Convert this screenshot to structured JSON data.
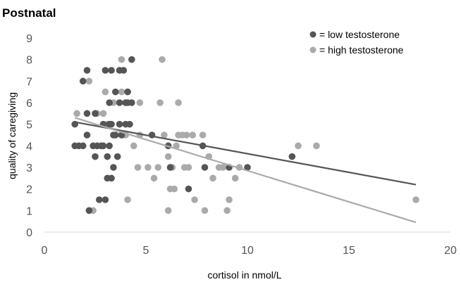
{
  "chart_data": {
    "type": "scatter",
    "title": "Postnatal",
    "xlabel": "cortisol in nmol/L",
    "ylabel": "quality of caregiving",
    "xlim": [
      0,
      20
    ],
    "ylim": [
      0,
      9
    ],
    "xticks": [
      "0",
      "5",
      "10",
      "15",
      "20"
    ],
    "yticks": [
      "0",
      "1",
      "2",
      "3",
      "4",
      "5",
      "6",
      "7",
      "8",
      "9"
    ],
    "grid": false,
    "legend_position": "top-right",
    "series": [
      {
        "name": "= low testosterone",
        "color": "#555555",
        "trendline": {
          "x1": 1.5,
          "y1": 5.1,
          "x2": 18.3,
          "y2": 2.2
        },
        "points": [
          [
            1.5,
            5
          ],
          [
            1.5,
            4
          ],
          [
            1.7,
            4
          ],
          [
            1.9,
            4
          ],
          [
            1.9,
            7
          ],
          [
            2.1,
            7.5
          ],
          [
            2.1,
            5.5
          ],
          [
            2.1,
            4.5
          ],
          [
            2.2,
            1
          ],
          [
            2.4,
            4
          ],
          [
            2.5,
            3.5
          ],
          [
            2.5,
            5.5
          ],
          [
            2.6,
            4
          ],
          [
            2.7,
            1.5
          ],
          [
            2.8,
            4
          ],
          [
            2.9,
            4
          ],
          [
            2.9,
            5
          ],
          [
            3.0,
            7.5
          ],
          [
            3.0,
            1.5
          ],
          [
            3.1,
            2.5
          ],
          [
            3.1,
            3.5
          ],
          [
            3.2,
            4
          ],
          [
            3.2,
            5
          ],
          [
            3.2,
            6
          ],
          [
            3.3,
            7.5
          ],
          [
            3.3,
            2.5
          ],
          [
            3.3,
            5
          ],
          [
            3.4,
            3
          ],
          [
            3.4,
            4.5
          ],
          [
            3.5,
            6.5
          ],
          [
            3.5,
            4.5
          ],
          [
            3.6,
            3.5
          ],
          [
            3.7,
            5
          ],
          [
            3.7,
            6
          ],
          [
            3.7,
            7.5
          ],
          [
            3.8,
            4.5
          ],
          [
            3.9,
            7.5
          ],
          [
            4.0,
            6
          ],
          [
            4.0,
            5
          ],
          [
            4.1,
            6.5
          ],
          [
            4.1,
            6
          ],
          [
            4.2,
            5
          ],
          [
            4.3,
            8
          ],
          [
            4.3,
            6
          ],
          [
            5.3,
            4.5
          ],
          [
            6.1,
            4
          ],
          [
            6.2,
            3
          ],
          [
            7.1,
            2
          ],
          [
            7.8,
            4
          ],
          [
            7.9,
            3
          ],
          [
            9.1,
            3
          ],
          [
            10.0,
            3
          ],
          [
            12.2,
            3.5
          ]
        ]
      },
      {
        "name": "= high testosterone",
        "color": "#aaaaaa",
        "trendline": {
          "x1": 1.5,
          "y1": 5.3,
          "x2": 18.3,
          "y2": 0.45
        },
        "points": [
          [
            1.6,
            5.5
          ],
          [
            2.2,
            7
          ],
          [
            2.4,
            1
          ],
          [
            2.6,
            5.5
          ],
          [
            2.9,
            5.5
          ],
          [
            3.0,
            6.5
          ],
          [
            3.1,
            5
          ],
          [
            3.2,
            5
          ],
          [
            3.4,
            6
          ],
          [
            3.8,
            8
          ],
          [
            3.8,
            6.5
          ],
          [
            3.9,
            4.5
          ],
          [
            4.0,
            4.5
          ],
          [
            4.1,
            6.5
          ],
          [
            4.1,
            1.5
          ],
          [
            4.4,
            4
          ],
          [
            4.6,
            3
          ],
          [
            4.7,
            4.5
          ],
          [
            4.7,
            6
          ],
          [
            5.1,
            3
          ],
          [
            5.4,
            2.5
          ],
          [
            5.6,
            3
          ],
          [
            5.7,
            6
          ],
          [
            5.8,
            8
          ],
          [
            5.9,
            4.5
          ],
          [
            6.1,
            1
          ],
          [
            6.1,
            3.5
          ],
          [
            6.2,
            2
          ],
          [
            6.3,
            3
          ],
          [
            6.4,
            2
          ],
          [
            6.5,
            4
          ],
          [
            6.6,
            6
          ],
          [
            6.6,
            4.5
          ],
          [
            6.8,
            4.5
          ],
          [
            6.9,
            3
          ],
          [
            7.0,
            4.5
          ],
          [
            7.1,
            3
          ],
          [
            7.3,
            4.5
          ],
          [
            7.4,
            1.5
          ],
          [
            7.8,
            4.5
          ],
          [
            7.9,
            1
          ],
          [
            8.1,
            3.5
          ],
          [
            8.3,
            2.5
          ],
          [
            8.6,
            3
          ],
          [
            8.8,
            3
          ],
          [
            9.0,
            1
          ],
          [
            9.1,
            1.5
          ],
          [
            9.4,
            2.5
          ],
          [
            9.6,
            3
          ],
          [
            12.5,
            4
          ],
          [
            13.4,
            4
          ],
          [
            18.3,
            1.5
          ]
        ]
      }
    ]
  }
}
